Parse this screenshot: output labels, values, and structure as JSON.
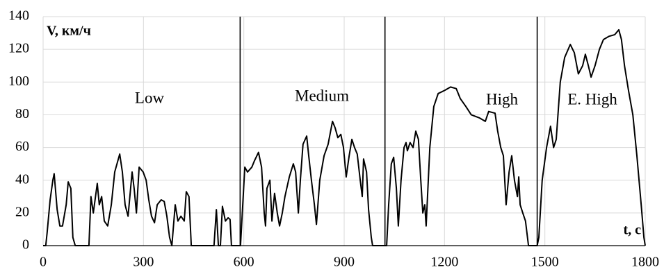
{
  "chart_data": {
    "type": "line",
    "y_label": "V, км/ч",
    "x_label": "t, с",
    "annotations": [
      "Low",
      "Medium",
      "High",
      "E. High"
    ],
    "phase_boundaries": [
      589,
      1022,
      1477
    ],
    "xlim": [
      0,
      1800
    ],
    "xticks": [
      0,
      300,
      600,
      900,
      1200,
      1500,
      1800
    ],
    "ylim": [
      0,
      140
    ],
    "yticks": [
      0,
      20,
      40,
      60,
      80,
      100,
      120,
      140
    ],
    "grid": true,
    "x": [
      0,
      8,
      12,
      21,
      29,
      33,
      42,
      50,
      58,
      69,
      75,
      83,
      89,
      96,
      137,
      143,
      150,
      162,
      168,
      175,
      183,
      193,
      204,
      214,
      229,
      237,
      245,
      254,
      266,
      272,
      279,
      287,
      299,
      308,
      316,
      324,
      333,
      341,
      353,
      362,
      370,
      378,
      385,
      395,
      403,
      412,
      422,
      428,
      436,
      443,
      511,
      518,
      524,
      530,
      536,
      545,
      553,
      559,
      563,
      589,
      590,
      603,
      611,
      624,
      632,
      644,
      653,
      661,
      665,
      669,
      678,
      684,
      692,
      700,
      707,
      715,
      723,
      736,
      748,
      755,
      763,
      769,
      777,
      788,
      794,
      802,
      811,
      817,
      827,
      840,
      852,
      865,
      873,
      881,
      890,
      898,
      906,
      915,
      923,
      931,
      939,
      948,
      954,
      958,
      967,
      973,
      981,
      985,
      1022,
      1027,
      1033,
      1041,
      1048,
      1056,
      1062,
      1070,
      1079,
      1085,
      1089,
      1097,
      1106,
      1114,
      1122,
      1129,
      1135,
      1141,
      1145,
      1156,
      1168,
      1181,
      1201,
      1218,
      1235,
      1247,
      1264,
      1280,
      1305,
      1322,
      1332,
      1351,
      1359,
      1368,
      1376,
      1384,
      1393,
      1401,
      1409,
      1418,
      1422,
      1426,
      1434,
      1442,
      1451,
      1477,
      1482,
      1492,
      1505,
      1517,
      1526,
      1534,
      1546,
      1559,
      1576,
      1588,
      1600,
      1613,
      1621,
      1630,
      1638,
      1650,
      1663,
      1675,
      1692,
      1709,
      1721,
      1729,
      1738,
      1750,
      1763,
      1775,
      1788,
      1796,
      1800
    ],
    "series": [
      {
        "color": "#000000",
        "values": [
          0,
          0,
          8,
          28,
          40,
          44,
          22,
          12,
          12,
          25,
          39,
          35,
          5,
          0,
          0,
          30,
          20,
          38,
          25,
          30,
          15,
          12,
          25,
          45,
          56,
          45,
          25,
          18,
          45,
          35,
          20,
          48,
          45,
          40,
          28,
          18,
          14,
          25,
          28,
          27,
          18,
          5,
          0,
          25,
          15,
          18,
          15,
          33,
          30,
          0,
          0,
          22,
          0,
          0,
          24,
          15,
          17,
          16,
          0,
          0,
          0,
          48,
          45,
          48,
          52,
          57,
          48,
          20,
          12,
          35,
          40,
          15,
          32,
          20,
          12,
          20,
          30,
          42,
          50,
          45,
          20,
          40,
          62,
          67,
          55,
          40,
          25,
          13,
          40,
          55,
          62,
          76,
          72,
          66,
          68,
          60,
          42,
          55,
          65,
          60,
          56,
          40,
          30,
          53,
          45,
          22,
          5,
          0,
          0,
          0,
          25,
          50,
          54,
          35,
          12,
          40,
          60,
          63,
          58,
          63,
          60,
          70,
          65,
          40,
          20,
          25,
          12,
          60,
          85,
          93,
          95,
          97,
          96,
          90,
          85,
          80,
          78,
          76,
          82,
          81,
          70,
          60,
          55,
          25,
          45,
          55,
          40,
          30,
          42,
          25,
          20,
          15,
          0,
          0,
          5,
          40,
          60,
          73,
          60,
          65,
          100,
          115,
          123,
          118,
          105,
          110,
          117,
          110,
          103,
          110,
          120,
          126,
          128,
          129,
          132,
          126,
          110,
          95,
          80,
          55,
          25,
          5,
          0
        ]
      }
    ]
  }
}
